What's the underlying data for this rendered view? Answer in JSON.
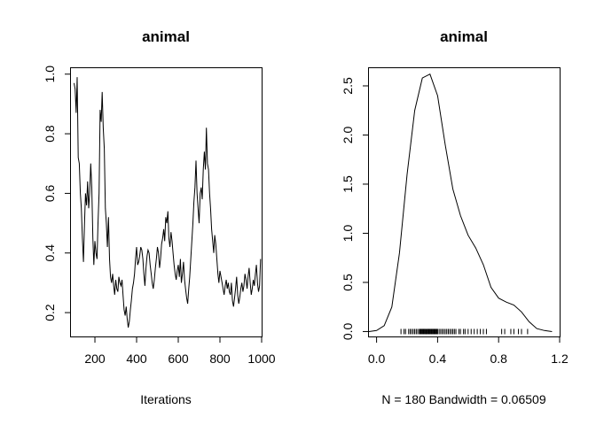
{
  "chart_data": [
    {
      "type": "line",
      "title": "animal",
      "xlabel": "Iterations",
      "ylabel": "",
      "xlim": [
        85,
        1000
      ],
      "ylim": [
        0.12,
        1.02
      ],
      "xticks": [
        "200",
        "400",
        "600",
        "800",
        "1000"
      ],
      "xtick_values": [
        200,
        400,
        600,
        800,
        1000
      ],
      "yticks": [
        "0.2",
        "0.4",
        "0.6",
        "0.8",
        "1.0"
      ],
      "ytick_values": [
        0.2,
        0.4,
        0.6,
        0.8,
        1.0
      ],
      "series": [
        {
          "x": [
            100,
            105,
            110,
            115,
            120,
            125,
            130,
            135,
            140,
            145,
            150,
            155,
            160,
            165,
            170,
            175,
            180,
            185,
            190,
            195,
            200,
            205,
            210,
            215,
            220,
            225,
            230,
            235,
            240,
            245,
            250,
            255,
            260,
            265,
            270,
            275,
            280,
            285,
            290,
            295,
            300,
            305,
            310,
            315,
            320,
            325,
            330,
            335,
            340,
            345,
            350,
            355,
            360,
            365,
            370,
            375,
            380,
            385,
            390,
            395,
            400,
            405,
            410,
            415,
            420,
            425,
            430,
            435,
            440,
            445,
            450,
            455,
            460,
            465,
            470,
            475,
            480,
            485,
            490,
            495,
            500,
            505,
            510,
            515,
            520,
            525,
            530,
            535,
            540,
            545,
            550,
            555,
            560,
            565,
            570,
            575,
            580,
            585,
            590,
            595,
            600,
            605,
            610,
            615,
            620,
            625,
            630,
            635,
            640,
            645,
            650,
            655,
            660,
            665,
            670,
            675,
            680,
            685,
            690,
            695,
            700,
            705,
            710,
            715,
            720,
            725,
            730,
            735,
            740,
            745,
            750,
            755,
            760,
            765,
            770,
            775,
            780,
            785,
            790,
            795,
            800,
            805,
            810,
            815,
            820,
            825,
            830,
            835,
            840,
            845,
            850,
            855,
            860,
            865,
            870,
            875,
            880,
            885,
            890,
            895,
            900,
            905,
            910,
            915,
            920,
            925,
            930,
            935,
            940,
            945,
            950,
            955,
            960,
            965,
            970,
            975,
            980,
            985,
            990,
            995
          ],
          "y": [
            0.97,
            0.95,
            0.87,
            0.99,
            0.72,
            0.7,
            0.6,
            0.55,
            0.45,
            0.37,
            0.5,
            0.6,
            0.56,
            0.64,
            0.55,
            0.6,
            0.7,
            0.62,
            0.45,
            0.36,
            0.44,
            0.4,
            0.38,
            0.5,
            0.6,
            0.88,
            0.84,
            0.94,
            0.82,
            0.75,
            0.55,
            0.5,
            0.42,
            0.52,
            0.38,
            0.32,
            0.3,
            0.33,
            0.29,
            0.26,
            0.31,
            0.28,
            0.27,
            0.32,
            0.3,
            0.29,
            0.31,
            0.26,
            0.21,
            0.19,
            0.22,
            0.18,
            0.15,
            0.17,
            0.21,
            0.24,
            0.28,
            0.3,
            0.33,
            0.38,
            0.42,
            0.36,
            0.37,
            0.39,
            0.42,
            0.41,
            0.38,
            0.33,
            0.29,
            0.35,
            0.39,
            0.41,
            0.4,
            0.36,
            0.33,
            0.3,
            0.28,
            0.31,
            0.35,
            0.38,
            0.42,
            0.4,
            0.35,
            0.38,
            0.43,
            0.45,
            0.48,
            0.44,
            0.52,
            0.5,
            0.54,
            0.45,
            0.42,
            0.47,
            0.44,
            0.4,
            0.36,
            0.33,
            0.31,
            0.34,
            0.36,
            0.32,
            0.38,
            0.3,
            0.33,
            0.37,
            0.31,
            0.28,
            0.25,
            0.23,
            0.28,
            0.32,
            0.38,
            0.44,
            0.5,
            0.57,
            0.62,
            0.71,
            0.6,
            0.55,
            0.5,
            0.6,
            0.62,
            0.58,
            0.68,
            0.74,
            0.68,
            0.82,
            0.7,
            0.68,
            0.6,
            0.55,
            0.48,
            0.44,
            0.4,
            0.46,
            0.43,
            0.38,
            0.33,
            0.3,
            0.34,
            0.32,
            0.3,
            0.28,
            0.26,
            0.29,
            0.31,
            0.28,
            0.3,
            0.27,
            0.26,
            0.3,
            0.24,
            0.22,
            0.25,
            0.28,
            0.32,
            0.26,
            0.23,
            0.25,
            0.28,
            0.3,
            0.27,
            0.29,
            0.33,
            0.31,
            0.28,
            0.32,
            0.35,
            0.3,
            0.26,
            0.28,
            0.31,
            0.29,
            0.33,
            0.36,
            0.3,
            0.27,
            0.29,
            0.38
          ]
        }
      ]
    },
    {
      "type": "area",
      "title": "animal",
      "xlabel": "N = 180   Bandwidth = 0.06509",
      "ylabel": "",
      "xlim": [
        -0.05,
        1.2
      ],
      "ylim": [
        -0.05,
        2.68
      ],
      "xticks": [
        "0.0",
        "0.4",
        "0.8",
        "1.2"
      ],
      "xtick_values": [
        0.0,
        0.4,
        0.8,
        1.2
      ],
      "yticks": [
        "0.0",
        "0.5",
        "1.0",
        "1.5",
        "2.0",
        "2.5"
      ],
      "ytick_values": [
        0.0,
        0.5,
        1.0,
        1.5,
        2.0,
        2.5
      ],
      "series": [
        {
          "x": [
            -0.05,
            0.0,
            0.05,
            0.1,
            0.15,
            0.2,
            0.25,
            0.3,
            0.35,
            0.4,
            0.45,
            0.5,
            0.55,
            0.6,
            0.65,
            0.7,
            0.75,
            0.8,
            0.85,
            0.9,
            0.95,
            1.0,
            1.05,
            1.1,
            1.15
          ],
          "y": [
            0.0,
            0.01,
            0.06,
            0.25,
            0.8,
            1.6,
            2.25,
            2.58,
            2.62,
            2.4,
            1.9,
            1.45,
            1.18,
            0.98,
            0.85,
            0.68,
            0.45,
            0.34,
            0.3,
            0.27,
            0.2,
            0.1,
            0.03,
            0.01,
            0.0
          ]
        }
      ],
      "rug": [
        0.16,
        0.18,
        0.19,
        0.21,
        0.22,
        0.23,
        0.24,
        0.25,
        0.26,
        0.27,
        0.28,
        0.285,
        0.29,
        0.295,
        0.3,
        0.305,
        0.31,
        0.315,
        0.32,
        0.325,
        0.33,
        0.335,
        0.34,
        0.345,
        0.35,
        0.355,
        0.36,
        0.365,
        0.37,
        0.375,
        0.38,
        0.385,
        0.39,
        0.395,
        0.4,
        0.41,
        0.42,
        0.43,
        0.44,
        0.45,
        0.46,
        0.47,
        0.48,
        0.49,
        0.5,
        0.51,
        0.52,
        0.54,
        0.55,
        0.57,
        0.58,
        0.6,
        0.62,
        0.64,
        0.66,
        0.68,
        0.7,
        0.72,
        0.82,
        0.84,
        0.88,
        0.9,
        0.93,
        0.95,
        0.99
      ]
    }
  ]
}
